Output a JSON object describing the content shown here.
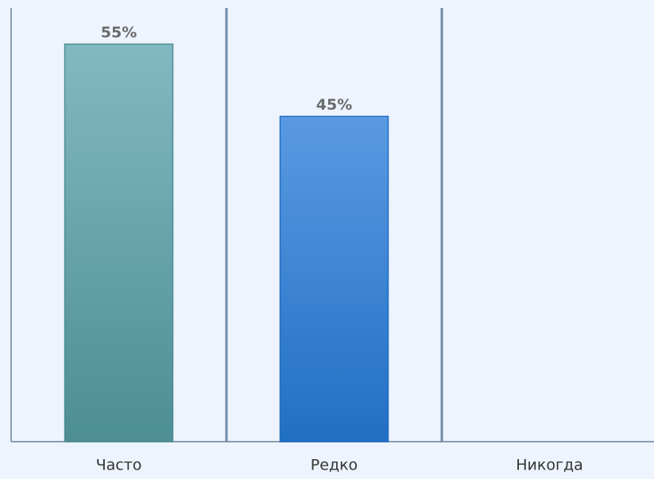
{
  "chart_data": {
    "type": "bar",
    "categories": [
      "Часто",
      "Редко",
      "Никогда"
    ],
    "values": [
      55,
      45,
      null
    ],
    "value_labels": [
      "55%",
      "45%",
      null
    ],
    "colors": [
      [
        "#82b8c1",
        "#4d8e94"
      ],
      [
        "#5a9ae2",
        "#216fc3"
      ]
    ],
    "ylim": [
      0,
      60
    ]
  }
}
